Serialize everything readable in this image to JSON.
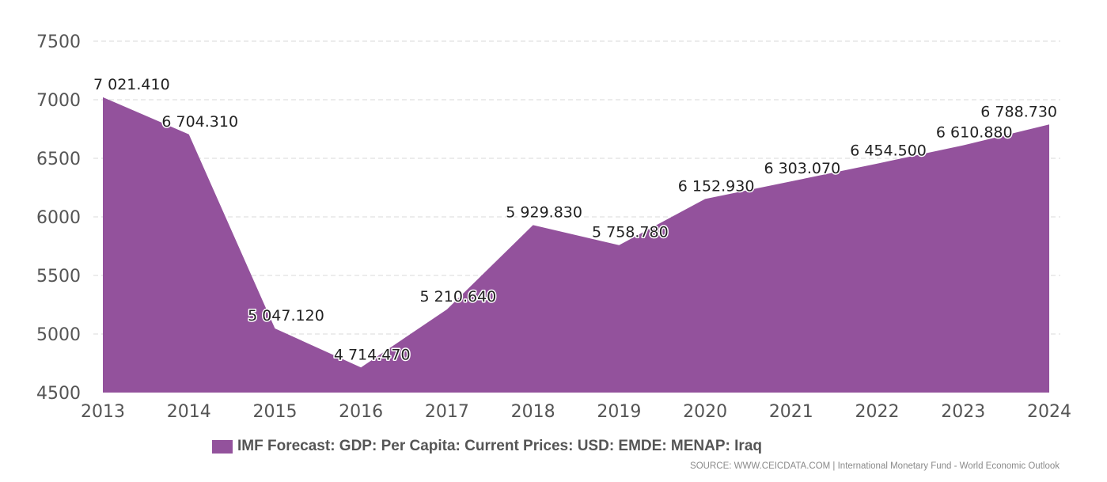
{
  "chart_data": {
    "type": "area",
    "title": "",
    "xlabel": "",
    "ylabel": "",
    "categories": [
      "2013",
      "2014",
      "2015",
      "2016",
      "2017",
      "2018",
      "2019",
      "2020",
      "2021",
      "2022",
      "2023",
      "2024"
    ],
    "series": [
      {
        "name": "IMF Forecast: GDP: Per Capita: Current Prices: USD: EMDE: MENAP: Iraq",
        "values": [
          7021.41,
          6704.31,
          5047.12,
          4714.47,
          5210.64,
          5929.83,
          5758.78,
          6152.93,
          6303.07,
          6454.5,
          6610.88,
          6788.73
        ],
        "labels": [
          "7 021.410",
          "6 704.310",
          "5 047.120",
          "4 714.470",
          "5 210.640",
          "5 929.830",
          "5 758.780",
          "6 152.930",
          "6 303.070",
          "6 454.500",
          "6 610.880",
          "6 788.730"
        ]
      }
    ],
    "ylim": [
      4500,
      7500
    ],
    "yticks": [
      "7500",
      "7000",
      "6500",
      "6000",
      "5500",
      "5000",
      "4500"
    ],
    "grid": true,
    "legend": "bottom",
    "colors": {
      "area": "#93529c",
      "grid": "#d8d8d8"
    }
  },
  "source": "SOURCE: WWW.CEICDATA.COM | International Monetary Fund - World Economic Outlook"
}
